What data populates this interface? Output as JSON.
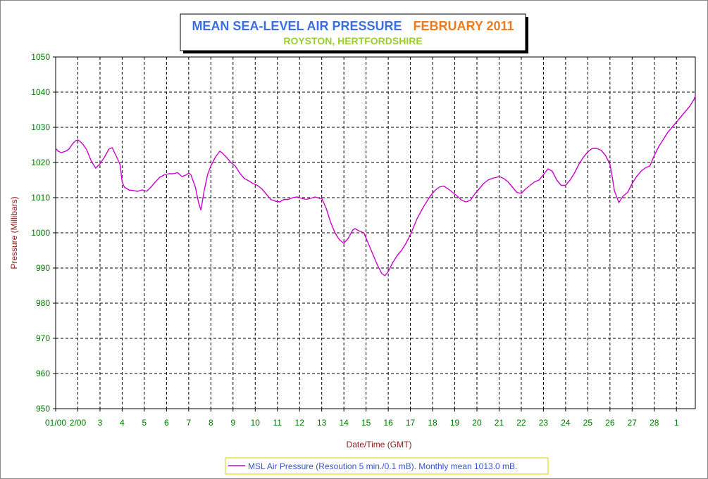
{
  "chart_data": {
    "type": "line",
    "title": "MEAN SEA-LEVEL AIR PRESSURE",
    "title_period": "FEBRUARY 2011",
    "subtitle": "ROYSTON, HERTFORDSHIRE",
    "xlabel": "Date/Time (GMT)",
    "ylabel": "Pressure (Millibars)",
    "ylim": [
      950,
      1050
    ],
    "yticks": [
      950,
      960,
      970,
      980,
      990,
      1000,
      1010,
      1020,
      1030,
      1040,
      1050
    ],
    "xlim": [
      1,
      29.85
    ],
    "xticks": [
      {
        "x": 1,
        "label": "01/00"
      },
      {
        "x": 2,
        "label": "2/00"
      },
      {
        "x": 3,
        "label": "3"
      },
      {
        "x": 4,
        "label": "4"
      },
      {
        "x": 5,
        "label": "5"
      },
      {
        "x": 6,
        "label": "6"
      },
      {
        "x": 7,
        "label": "7"
      },
      {
        "x": 8,
        "label": "8"
      },
      {
        "x": 9,
        "label": "9"
      },
      {
        "x": 10,
        "label": "10"
      },
      {
        "x": 11,
        "label": "11"
      },
      {
        "x": 12,
        "label": "12"
      },
      {
        "x": 13,
        "label": "13"
      },
      {
        "x": 14,
        "label": "14"
      },
      {
        "x": 15,
        "label": "15"
      },
      {
        "x": 16,
        "label": "16"
      },
      {
        "x": 17,
        "label": "17"
      },
      {
        "x": 18,
        "label": "18"
      },
      {
        "x": 19,
        "label": "19"
      },
      {
        "x": 20,
        "label": "20"
      },
      {
        "x": 21,
        "label": "21"
      },
      {
        "x": 22,
        "label": "22"
      },
      {
        "x": 23,
        "label": "23"
      },
      {
        "x": 24,
        "label": "24"
      },
      {
        "x": 25,
        "label": "25"
      },
      {
        "x": 26,
        "label": "26"
      },
      {
        "x": 27,
        "label": "27"
      },
      {
        "x": 28,
        "label": "28"
      },
      {
        "x": 29,
        "label": "1"
      }
    ],
    "grid": true,
    "legend_position": "bottom-center",
    "series": [
      {
        "name": "MSL Air Pressure (Resoution 5 min./0.1 mB). Monthly mean 1013.0 mB.",
        "color": "#cc00cc",
        "x": [
          1.0,
          1.12,
          1.25,
          1.45,
          1.6,
          1.75,
          1.9,
          2.0,
          2.1,
          2.25,
          2.4,
          2.6,
          2.8,
          3.0,
          3.2,
          3.4,
          3.55,
          3.75,
          3.9,
          4.0,
          4.1,
          4.3,
          4.5,
          4.7,
          4.9,
          5.1,
          5.3,
          5.5,
          5.7,
          5.9,
          6.1,
          6.3,
          6.5,
          6.7,
          6.9,
          7.0,
          7.1,
          7.3,
          7.45,
          7.55,
          7.7,
          7.85,
          8.0,
          8.2,
          8.4,
          8.5,
          8.7,
          8.9,
          9.1,
          9.3,
          9.5,
          9.7,
          9.9,
          10.1,
          10.3,
          10.5,
          10.7,
          10.9,
          11.1,
          11.3,
          11.5,
          11.7,
          11.9,
          12.1,
          12.3,
          12.5,
          12.7,
          12.9,
          13.0,
          13.2,
          13.4,
          13.6,
          13.8,
          14.0,
          14.2,
          14.4,
          14.5,
          14.7,
          14.9,
          15.1,
          15.3,
          15.5,
          15.7,
          15.85,
          16.0,
          16.2,
          16.4,
          16.6,
          16.8,
          17.0,
          17.3,
          17.6,
          17.9,
          18.1,
          18.3,
          18.5,
          18.7,
          18.9,
          19.1,
          19.3,
          19.5,
          19.7,
          19.9,
          20.1,
          20.3,
          20.5,
          20.7,
          20.9,
          21.0,
          21.2,
          21.4,
          21.6,
          21.8,
          22.0,
          22.2,
          22.4,
          22.6,
          22.8,
          23.0,
          23.2,
          23.4,
          23.6,
          23.8,
          24.0,
          24.2,
          24.4,
          24.6,
          24.8,
          25.0,
          25.2,
          25.4,
          25.6,
          25.8,
          26.0,
          26.1,
          26.2,
          26.4,
          26.6,
          26.8,
          27.0,
          27.2,
          27.4,
          27.6,
          27.8,
          28.0,
          28.2,
          28.4,
          28.6,
          28.8,
          29.0,
          29.2,
          29.4,
          29.6,
          29.8,
          29.85
        ],
        "y": [
          1024.0,
          1023.2,
          1022.8,
          1023.2,
          1023.8,
          1025.2,
          1026.2,
          1026.4,
          1026.0,
          1025.0,
          1023.6,
          1020.5,
          1018.4,
          1019.6,
          1021.5,
          1023.8,
          1024.2,
          1021.6,
          1019.5,
          1014.5,
          1013.0,
          1012.2,
          1012.0,
          1011.8,
          1012.2,
          1011.8,
          1013.0,
          1014.5,
          1015.8,
          1016.5,
          1016.8,
          1016.8,
          1017.1,
          1016.0,
          1016.5,
          1017.0,
          1016.5,
          1013.0,
          1008.5,
          1006.5,
          1012.0,
          1016.5,
          1019.0,
          1021.5,
          1023.2,
          1022.8,
          1021.5,
          1020.0,
          1019.0,
          1017.0,
          1015.5,
          1014.8,
          1014.0,
          1013.5,
          1012.5,
          1011.0,
          1009.5,
          1009.0,
          1008.8,
          1009.5,
          1009.5,
          1010.0,
          1010.2,
          1009.8,
          1009.5,
          1009.8,
          1010.2,
          1009.8,
          1009.8,
          1007.0,
          1003.0,
          1000.0,
          998.0,
          997.0,
          998.5,
          1000.8,
          1001.2,
          1000.5,
          1000.0,
          997.0,
          994.0,
          991.0,
          988.5,
          987.8,
          989.0,
          991.5,
          993.5,
          995.0,
          997.0,
          999.5,
          1004.0,
          1007.5,
          1010.5,
          1012.0,
          1013.0,
          1013.3,
          1012.5,
          1011.5,
          1010.5,
          1009.3,
          1008.8,
          1009.2,
          1011.0,
          1012.5,
          1014.0,
          1015.0,
          1015.5,
          1015.8,
          1016.0,
          1015.5,
          1014.5,
          1013.0,
          1011.5,
          1011.2,
          1012.5,
          1013.5,
          1014.5,
          1015.0,
          1016.5,
          1018.2,
          1017.5,
          1015.0,
          1013.5,
          1013.5,
          1015.0,
          1017.0,
          1019.5,
          1021.5,
          1023.0,
          1024.0,
          1024.0,
          1023.5,
          1022.0,
          1019.5,
          1016.0,
          1012.0,
          1008.6,
          1010.5,
          1011.5,
          1014.0,
          1016.0,
          1017.5,
          1018.5,
          1019.0,
          1022.0,
          1024.5,
          1026.5,
          1028.5,
          1030.0,
          1031.5,
          1033.0,
          1034.5,
          1036.0,
          1038.0,
          1039.0
        ]
      }
    ]
  }
}
